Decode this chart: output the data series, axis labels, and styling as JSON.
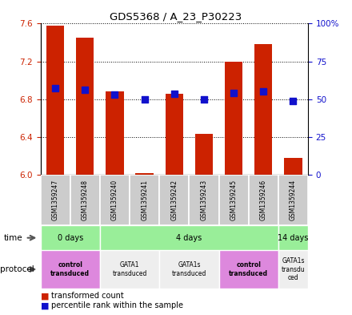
{
  "title": "GDS5368 / A_23_P30223",
  "samples": [
    "GSM1359247",
    "GSM1359248",
    "GSM1359240",
    "GSM1359241",
    "GSM1359242",
    "GSM1359243",
    "GSM1359245",
    "GSM1359246",
    "GSM1359244"
  ],
  "bar_tops": [
    7.58,
    7.45,
    6.88,
    6.02,
    6.86,
    6.43,
    7.2,
    7.38,
    6.18
  ],
  "bar_base": 6.0,
  "blue_vals": [
    6.92,
    6.9,
    6.85,
    6.8,
    6.86,
    6.8,
    6.87,
    6.88,
    6.78
  ],
  "ylim": [
    6.0,
    7.6
  ],
  "y2lim": [
    0,
    100
  ],
  "yticks": [
    6.0,
    6.4,
    6.8,
    7.2,
    7.6
  ],
  "y2ticks": [
    0,
    25,
    50,
    75,
    100
  ],
  "bar_color": "#cc2200",
  "blue_color": "#1111cc",
  "time_groups": [
    {
      "label": "0 days",
      "start": 0,
      "end": 2,
      "color": "#99ee99"
    },
    {
      "label": "4 days",
      "start": 2,
      "end": 8,
      "color": "#99ee99"
    },
    {
      "label": "14 days",
      "start": 8,
      "end": 9,
      "color": "#99ee99"
    }
  ],
  "protocol_groups": [
    {
      "label": "control\ntransduced",
      "start": 0,
      "end": 2,
      "color": "#dd88dd",
      "bold": true
    },
    {
      "label": "GATA1\ntransduced",
      "start": 2,
      "end": 4,
      "color": "#eeeeee",
      "bold": false
    },
    {
      "label": "GATA1s\ntransduced",
      "start": 4,
      "end": 6,
      "color": "#eeeeee",
      "bold": false
    },
    {
      "label": "control\ntransduced",
      "start": 6,
      "end": 8,
      "color": "#dd88dd",
      "bold": true
    },
    {
      "label": "GATA1s\ntransdu\nced",
      "start": 8,
      "end": 9,
      "color": "#eeeeee",
      "bold": false
    }
  ],
  "legend": [
    {
      "color": "#cc2200",
      "marker": "s",
      "label": "transformed count"
    },
    {
      "color": "#1111cc",
      "marker": "s",
      "label": "percentile rank within the sample"
    }
  ]
}
